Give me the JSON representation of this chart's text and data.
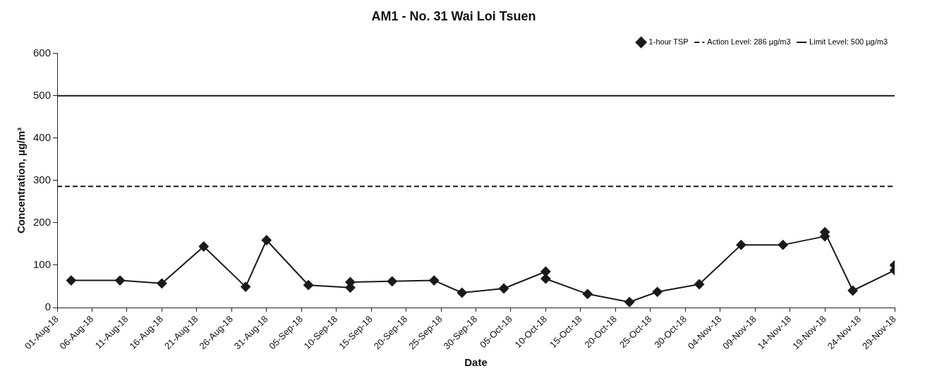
{
  "chart_data": {
    "type": "line",
    "title": "AM1 - No. 31 Wai Loi Tsuen",
    "xlabel": "Date",
    "ylabel": "Concentration, µg/m³",
    "x": [
      "--08-03",
      "--08-10",
      "--08-16",
      "--08-22",
      "--08-28",
      "--08-31",
      "--09-06",
      "--09-12",
      "--09-12",
      "--09-18",
      "--09-24",
      "--09-28",
      "--10-04",
      "--10-10",
      "--10-10",
      "--10-16",
      "--10-22",
      "--10-26",
      "--11-01",
      "--11-07",
      "--11-13",
      "--11-19",
      "--11-19",
      "--11-23",
      "--11-29",
      "--11-29"
    ],
    "series": [
      {
        "name": "1-hour TSP",
        "color": "#1a1a1a",
        "values": [
          64,
          64,
          57,
          144,
          49,
          159,
          53,
          47,
          60,
          62,
          64,
          35,
          45,
          85,
          68,
          32,
          13,
          37,
          55,
          148,
          148,
          168,
          178,
          40,
          88,
          100
        ]
      }
    ],
    "ylim": [
      0,
      600
    ],
    "yticks": [
      0,
      100,
      200,
      300,
      400,
      500,
      600
    ],
    "xlim": [
      "--08-01",
      "--11-29"
    ],
    "xticks": [
      {
        "value": "--08-01",
        "label": "01-Aug-18"
      },
      {
        "value": "--08-06",
        "label": "06-Aug-18"
      },
      {
        "value": "--08-11",
        "label": "11-Aug-18"
      },
      {
        "value": "--08-16",
        "label": "16-Aug-18"
      },
      {
        "value": "--08-21",
        "label": "21-Aug-18"
      },
      {
        "value": "--08-26",
        "label": "26-Aug-18"
      },
      {
        "value": "--08-31",
        "label": "31-Aug-18"
      },
      {
        "value": "--09-05",
        "label": "05-Sep-18"
      },
      {
        "value": "--09-10",
        "label": "10-Sep-18"
      },
      {
        "value": "--09-15",
        "label": "15-Sep-18"
      },
      {
        "value": "--09-20",
        "label": "20-Sep-18"
      },
      {
        "value": "--09-25",
        "label": "25-Sep-18"
      },
      {
        "value": "--09-30",
        "label": "30-Sep-18"
      },
      {
        "value": "--10-05",
        "label": "05-Oct-18"
      },
      {
        "value": "--10-10",
        "label": "10-Oct-18"
      },
      {
        "value": "--10-15",
        "label": "15-Oct-18"
      },
      {
        "value": "--10-20",
        "label": "20-Oct-18"
      },
      {
        "value": "--10-25",
        "label": "25-Oct-18"
      },
      {
        "value": "--10-30",
        "label": "30-Oct-18"
      },
      {
        "value": "--11-04",
        "label": "04-Nov-18"
      },
      {
        "value": "--11-09",
        "label": "09-Nov-18"
      },
      {
        "value": "--11-14",
        "label": "14-Nov-18"
      },
      {
        "value": "--11-19",
        "label": "19-Nov-18"
      },
      {
        "value": "--11-24",
        "label": "24-Nov-18"
      },
      {
        "value": "--11-29",
        "label": "29-Nov-18"
      }
    ],
    "ref_lines": [
      {
        "axis": "y",
        "value": 286,
        "label": "Action Level: 286 µg/m3",
        "line_style": "dashed",
        "color": "#1a1a1a"
      },
      {
        "axis": "y",
        "value": 500,
        "label": "Limit Level: 500 µg/m3",
        "line_style": "solid",
        "color": "#1a1a1a"
      }
    ],
    "marker": "diamond",
    "line_style": "solid",
    "grid": false,
    "legend": "top right"
  }
}
